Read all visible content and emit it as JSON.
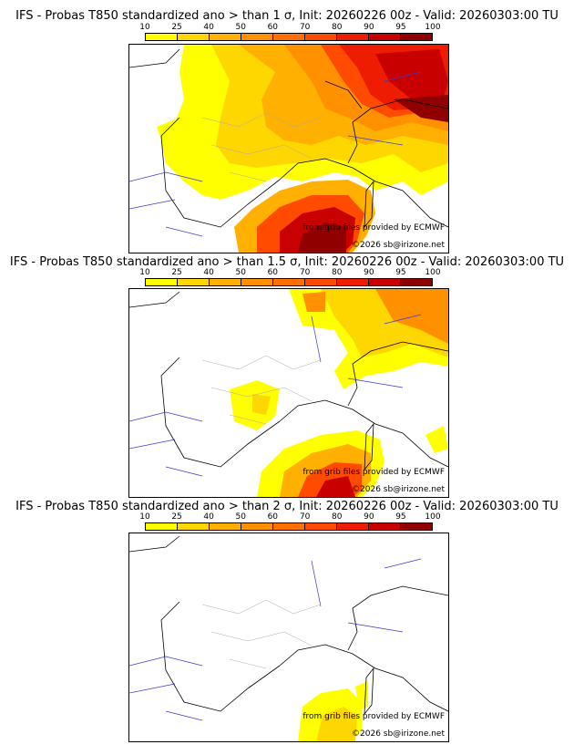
{
  "colorbar": {
    "ticks": [
      "10",
      "25",
      "40",
      "50",
      "60",
      "70",
      "80",
      "90",
      "95",
      "100"
    ],
    "colors": [
      "#ffff00",
      "#ffd700",
      "#ffb000",
      "#ff9000",
      "#ff7000",
      "#ff4b00",
      "#ee1c00",
      "#c80000",
      "#900000"
    ]
  },
  "panels": [
    {
      "title": "IFS - Probas T850  standardized ano > than 1 σ, Init: 20260226 00z - Valid: 20260303:00 TU",
      "source": "from grib files provided by ECMWF",
      "copyright": "©2026 sb@irizone.net"
    },
    {
      "title": "IFS - Probas T850  standardized ano > than 1.5 σ, Init: 20260226 00z - Valid: 20260303:00 TU",
      "source": "from grib files provided by ECMWF",
      "copyright": "©2026 sb@irizone.net"
    },
    {
      "title": "IFS - Probas T850  standardized ano > than 2 σ, Init: 20260226 00z - Valid: 20260303:00 TU",
      "source": "from grib files provided by ECMWF",
      "copyright": "©2026 sb@irizone.net"
    }
  ]
}
